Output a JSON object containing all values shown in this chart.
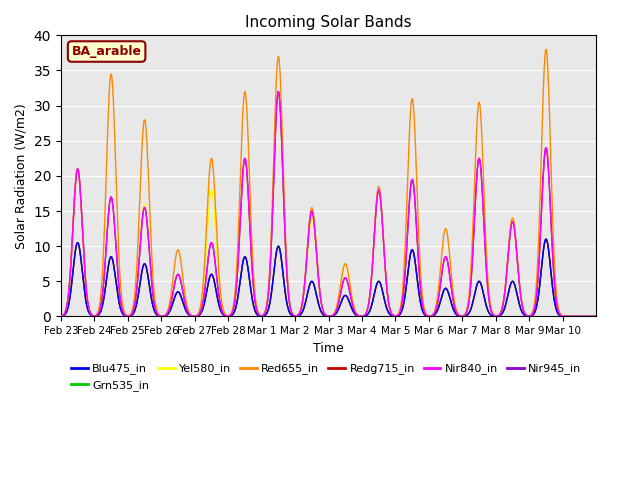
{
  "title": "Incoming Solar Bands",
  "xlabel": "Time",
  "ylabel": "Solar Radiation (W/m2)",
  "annotation": "BA_arable",
  "ylim": [
    0,
    40
  ],
  "background_color": "#e8e8e8",
  "legend_entries": [
    "Blu475_in",
    "Grn535_in",
    "Yel580_in",
    "Red655_in",
    "Redg715_in",
    "Nir840_in",
    "Nir945_in"
  ],
  "legend_colors": [
    "#0000ff",
    "#00cc00",
    "#ffff00",
    "#ff8800",
    "#cc0000",
    "#ff00ff",
    "#8800cc"
  ],
  "line_width": 1.0,
  "day_labels": [
    "Feb 23",
    "Feb 24",
    "Feb 25",
    "Feb 26",
    "Feb 27",
    "Feb 28",
    "Mar 1",
    "Mar 2",
    "Mar 3",
    "Mar 4",
    "Mar 5",
    "Mar 6",
    "Mar 7",
    "Mar 8",
    "Mar 9",
    "Mar 10"
  ],
  "peaks": [
    {
      "day": 0.5,
      "heights": [
        10.5,
        10.5,
        21.0,
        21.0,
        10.5,
        21.0,
        21.0
      ]
    },
    {
      "day": 1.5,
      "heights": [
        8.5,
        8.5,
        17.0,
        34.5,
        8.5,
        17.0,
        17.0
      ]
    },
    {
      "day": 2.5,
      "heights": [
        7.5,
        7.5,
        16.0,
        28.0,
        7.5,
        15.5,
        15.5
      ]
    },
    {
      "day": 3.5,
      "heights": [
        3.5,
        3.5,
        6.0,
        9.5,
        3.5,
        6.0,
        6.0
      ]
    },
    {
      "day": 4.5,
      "heights": [
        6.0,
        6.0,
        18.0,
        22.5,
        6.0,
        10.5,
        10.5
      ]
    },
    {
      "day": 5.5,
      "heights": [
        8.5,
        8.5,
        22.0,
        32.0,
        8.5,
        22.5,
        22.5
      ]
    },
    {
      "day": 6.5,
      "heights": [
        10.0,
        10.0,
        32.0,
        37.0,
        10.0,
        32.0,
        32.0
      ]
    },
    {
      "day": 7.5,
      "heights": [
        5.0,
        5.0,
        14.0,
        15.5,
        5.0,
        15.0,
        15.0
      ]
    },
    {
      "day": 8.5,
      "heights": [
        3.0,
        3.0,
        7.5,
        7.5,
        3.0,
        5.5,
        5.5
      ]
    },
    {
      "day": 9.5,
      "heights": [
        5.0,
        5.0,
        18.0,
        18.5,
        5.0,
        18.0,
        18.0
      ]
    },
    {
      "day": 10.5,
      "heights": [
        9.5,
        9.5,
        19.5,
        31.0,
        9.5,
        19.5,
        19.5
      ]
    },
    {
      "day": 11.5,
      "heights": [
        4.0,
        4.0,
        8.5,
        12.5,
        4.0,
        8.5,
        8.5
      ]
    },
    {
      "day": 12.5,
      "heights": [
        5.0,
        5.0,
        22.5,
        30.5,
        5.0,
        22.5,
        22.5
      ]
    },
    {
      "day": 13.5,
      "heights": [
        5.0,
        5.0,
        14.0,
        14.0,
        5.0,
        13.5,
        13.5
      ]
    },
    {
      "day": 14.5,
      "heights": [
        11.0,
        11.0,
        24.0,
        38.0,
        11.0,
        24.0,
        24.0
      ]
    },
    {
      "day": 15.5,
      "heights": [
        0.0,
        0.0,
        0.0,
        0.0,
        0.0,
        0.0,
        0.0
      ]
    }
  ]
}
